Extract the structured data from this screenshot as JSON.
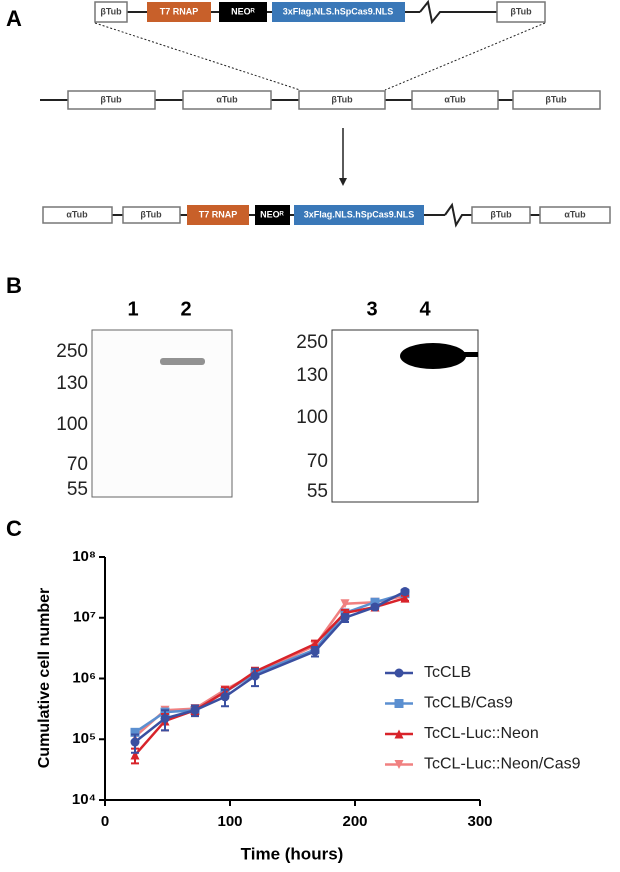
{
  "panels": {
    "a": {
      "letter": "A",
      "insert": [
        "βTub",
        "T7 RNAP",
        "NEOᴿ",
        "3xFlag.NLS.hSpCas9.NLS",
        "βTub"
      ],
      "locus": [
        "βTub",
        "αTub",
        "βTub",
        "αTub",
        "βTub"
      ],
      "result": [
        "αTub",
        "βTub",
        "T7 RNAP",
        "NEOᴿ",
        "3xFlag.NLS.hSpCas9.NLS",
        "βTub",
        "αTub"
      ]
    },
    "b": {
      "letter": "B",
      "blots": [
        {
          "lanes": [
            "1",
            "2"
          ],
          "markers": [
            "250",
            "130",
            "100",
            "70",
            "55"
          ]
        },
        {
          "lanes": [
            "3",
            "4"
          ],
          "markers": [
            "250",
            "130",
            "100",
            "70",
            "55"
          ]
        }
      ]
    },
    "c": {
      "letter": "C"
    }
  },
  "chart_data": {
    "type": "line",
    "x_label": "Time (hours)",
    "y_label": "Cumulative cell number",
    "x": [
      24,
      48,
      72,
      96,
      120,
      168,
      192,
      216,
      240
    ],
    "series": [
      {
        "name": "TcCLB",
        "color": "#3a4fa0",
        "marker": "circle",
        "values": [
          90000,
          220000,
          300000,
          500000,
          1100000,
          2800000,
          10000000,
          15000000,
          27000000
        ],
        "errors": [
          30000,
          80000,
          60000,
          150000,
          350000,
          500000,
          1500000,
          1000000,
          2000000
        ]
      },
      {
        "name": "TcCLB/Cas9",
        "color": "#5b8fd0",
        "marker": "square",
        "values": [
          130000,
          280000,
          300000,
          600000,
          1200000,
          3000000,
          12000000,
          18000000,
          25000000
        ]
      },
      {
        "name": "TcCL-Luc::Neon",
        "color": "#d8232a",
        "marker": "triangle-up",
        "values": [
          55000,
          200000,
          300000,
          600000,
          1300000,
          3700000,
          12000000,
          15000000,
          21000000
        ],
        "errors": [
          15000,
          60000,
          50000,
          120000,
          200000,
          500000,
          1500000,
          1000000,
          2000000
        ]
      },
      {
        "name": "TcCL-Luc::Neon/Cas9",
        "color": "#f08080",
        "marker": "triangle-down",
        "values": [
          110000,
          300000,
          320000,
          650000,
          1200000,
          3500000,
          17000000,
          18000000,
          23000000
        ]
      }
    ],
    "xlim": [
      0,
      300
    ],
    "xticks": [
      0,
      100,
      200,
      300
    ],
    "log_y": true,
    "ylim": [
      10000,
      100000000
    ],
    "yticks": [
      {
        "value": 10000,
        "label": "10⁴"
      },
      {
        "value": 100000,
        "label": "10⁵"
      },
      {
        "value": 1000000,
        "label": "10⁶"
      },
      {
        "value": 10000000,
        "label": "10⁷"
      },
      {
        "value": 100000000,
        "label": "10⁸"
      }
    ],
    "legend": "right"
  }
}
